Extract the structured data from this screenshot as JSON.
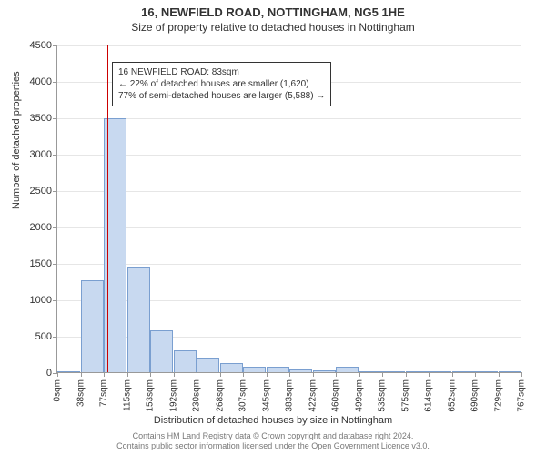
{
  "title": "16, NEWFIELD ROAD, NOTTINGHAM, NG5 1HE",
  "subtitle": "Size of property relative to detached houses in Nottingham",
  "chart": {
    "type": "histogram",
    "xlabel": "Distribution of detached houses by size in Nottingham",
    "ylabel": "Number of detached properties",
    "ylim": [
      0,
      4500
    ],
    "yticks": [
      0,
      500,
      1000,
      1500,
      2000,
      2500,
      3000,
      3500,
      4000,
      4500
    ],
    "xtick_labels": [
      "0sqm",
      "38sqm",
      "77sqm",
      "115sqm",
      "153sqm",
      "192sqm",
      "230sqm",
      "268sqm",
      "307sqm",
      "345sqm",
      "383sqm",
      "422sqm",
      "460sqm",
      "499sqm",
      "535sqm",
      "575sqm",
      "614sqm",
      "652sqm",
      "690sqm",
      "729sqm",
      "767sqm"
    ],
    "bar_values": [
      0,
      1260,
      3490,
      1450,
      570,
      300,
      200,
      120,
      70,
      70,
      40,
      20,
      80,
      15,
      10,
      10,
      10,
      10,
      5,
      5
    ],
    "bar_color": "#c8d9f0",
    "bar_border": "#7a9fd0",
    "grid_color": "#e6e6e6",
    "axis_color": "#999999",
    "background_color": "#ffffff",
    "marker_value_sqm": 83,
    "marker_color": "#cc0000",
    "x_max_sqm": 767
  },
  "annotation": {
    "line1": "16 NEWFIELD ROAD: 83sqm",
    "line2": "← 22% of detached houses are smaller (1,620)",
    "line3": "77% of semi-detached houses are larger (5,588) →"
  },
  "footer": {
    "line1": "Contains HM Land Registry data © Crown copyright and database right 2024.",
    "line2": "Contains public sector information licensed under the Open Government Licence v3.0."
  }
}
